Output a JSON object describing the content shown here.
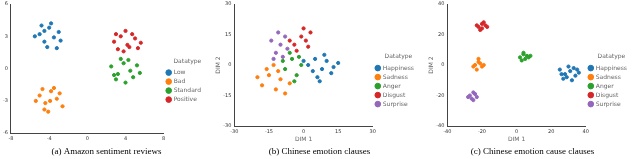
{
  "chart_data": [
    {
      "type": "scatter",
      "title": "(a) Amazon sentiment reviews",
      "legend": "right",
      "legend_title": "Datatype",
      "grid": false,
      "xlim": [
        -8,
        8
      ],
      "xticks": [
        -8,
        -4,
        0,
        4,
        8
      ],
      "ylim": [
        -6,
        6
      ],
      "yticks": [
        -6,
        -3,
        0,
        3,
        6
      ],
      "series": [
        {
          "name": "Low",
          "color": "#1f77b4",
          "x": [
            -5,
            -4.5,
            -4,
            -3.5,
            -3,
            -5.5,
            -4.2,
            -3.8,
            -2.8,
            -4.8,
            -3.2,
            -4.5
          ],
          "y": [
            3.2,
            2.5,
            3.8,
            2.9,
            3.4,
            3.0,
            2.0,
            4.2,
            2.6,
            4.0,
            1.9,
            3.5
          ]
        },
        {
          "name": "Bad",
          "color": "#ff7f0e",
          "x": [
            -5,
            -4.4,
            -3.8,
            -3.2,
            -2.6,
            -5.4,
            -4.1,
            -3.5,
            -4.7,
            -2.9,
            -3.9,
            -4.5
          ],
          "y": [
            -2.5,
            -3.2,
            -2.1,
            -2.8,
            -3.5,
            -3.0,
            -4.0,
            -1.8,
            -1.9,
            -2.3,
            -3.0,
            -3.8
          ]
        },
        {
          "name": "Standard",
          "color": "#2ca02c",
          "x": [
            2.5,
            3.2,
            3.8,
            4.5,
            5.2,
            3.0,
            4.0,
            4.8,
            5.5,
            3.5,
            4.3,
            2.8
          ],
          "y": [
            0.2,
            -0.5,
            0.5,
            -0.2,
            0.3,
            -1.0,
            -1.3,
            -0.8,
            -0.4,
            0.9,
            0.8,
            -0.6
          ]
        },
        {
          "name": "Positive",
          "color": "#d62728",
          "x": [
            2.8,
            3.5,
            4.2,
            5.0,
            5.6,
            3.2,
            4.0,
            4.7,
            3.8,
            5.3,
            4.4,
            3.0
          ],
          "y": [
            2.5,
            3.0,
            2.2,
            2.8,
            2.4,
            1.8,
            3.5,
            3.2,
            1.6,
            1.9,
            2.0,
            3.2
          ]
        }
      ]
    },
    {
      "type": "scatter",
      "title": "(b) Chinese emotion clauses",
      "x_label": "DIM 1",
      "y_label": "DIM 2",
      "legend": "right",
      "legend_title": "Datatype",
      "grid": false,
      "xlim": [
        -30,
        30
      ],
      "xticks": [
        -30,
        -15,
        0,
        15,
        30
      ],
      "ylim": [
        -30,
        30
      ],
      "yticks": [
        -30,
        -15,
        0,
        15,
        30
      ],
      "series": [
        {
          "name": "Happiness",
          "color": "#1f77b4",
          "x": [
            2,
            5,
            8,
            10,
            12,
            6,
            15,
            4,
            9,
            13,
            0,
            7
          ],
          "y": [
            0,
            3,
            -2,
            2,
            -4,
            -6,
            1,
            -3,
            5,
            -1,
            2,
            -8
          ]
        },
        {
          "name": "Sadness",
          "color": "#ff7f0e",
          "x": [
            -18,
            -15,
            -12,
            -10,
            -16,
            -8,
            -13,
            -20,
            -6,
            -11
          ],
          "y": [
            -10,
            -5,
            -12,
            -7,
            -2,
            -14,
            0,
            -6,
            -9,
            -3
          ]
        },
        {
          "name": "Anger",
          "color": "#2ca02c",
          "x": [
            -8,
            -5,
            -3,
            -6,
            -1,
            -4,
            -9,
            -2
          ],
          "y": [
            -2,
            3,
            -5,
            6,
            0,
            -8,
            2,
            4
          ]
        },
        {
          "name": "Disgust",
          "color": "#d62728",
          "x": [
            -4,
            -1,
            2,
            0,
            -6,
            3,
            -3,
            1
          ],
          "y": [
            10,
            14,
            9,
            18,
            12,
            16,
            7,
            12
          ]
        },
        {
          "name": "Surprise",
          "color": "#9467bd",
          "x": [
            -12,
            -10,
            -8,
            -14,
            -9,
            -11,
            -7,
            -13
          ],
          "y": [
            6,
            10,
            14,
            12,
            4,
            16,
            8,
            3
          ]
        }
      ]
    },
    {
      "type": "scatter",
      "title": "(c) Chinese emotion cause clauses",
      "x_label": "DIM 1",
      "y_label": "DIM 2",
      "legend": "right",
      "legend_title": "Datatype",
      "grid": false,
      "xlim": [
        -40,
        40
      ],
      "xticks": [
        -40,
        -20,
        0,
        20,
        40
      ],
      "ylim": [
        -40,
        40
      ],
      "yticks": [
        -40,
        -20,
        0,
        20,
        40
      ],
      "series": [
        {
          "name": "Happiness",
          "color": "#1f77b4",
          "x": [
            25,
            28,
            31,
            34,
            27,
            30,
            33,
            36,
            29,
            32,
            26,
            35
          ],
          "y": [
            -3,
            -6,
            -4,
            -7,
            -9,
            -1,
            -2,
            -5,
            -8,
            -10,
            -6,
            -3
          ]
        },
        {
          "name": "Sadness",
          "color": "#ff7f0e",
          "x": [
            -24,
            -22,
            -20,
            -23,
            -21,
            -25,
            -19,
            -22
          ],
          "y": [
            0,
            2,
            -1,
            -3,
            1,
            -1,
            0,
            4
          ]
        },
        {
          "name": "Anger",
          "color": "#2ca02c",
          "x": [
            2,
            4,
            6,
            3,
            5,
            7,
            4,
            8
          ],
          "y": [
            5,
            7,
            6,
            3,
            4,
            5,
            8,
            6
          ]
        },
        {
          "name": "Disgust",
          "color": "#d62728",
          "x": [
            -22,
            -20,
            -18,
            -21,
            -19,
            -23,
            -17,
            -20
          ],
          "y": [
            25,
            27,
            26,
            23,
            28,
            26,
            25,
            24
          ]
        },
        {
          "name": "Surprise",
          "color": "#9467bd",
          "x": [
            -27,
            -25,
            -23,
            -26,
            -24,
            -28,
            -25
          ],
          "y": [
            -20,
            -18,
            -21,
            -22,
            -19,
            -21,
            -23
          ]
        }
      ]
    }
  ]
}
